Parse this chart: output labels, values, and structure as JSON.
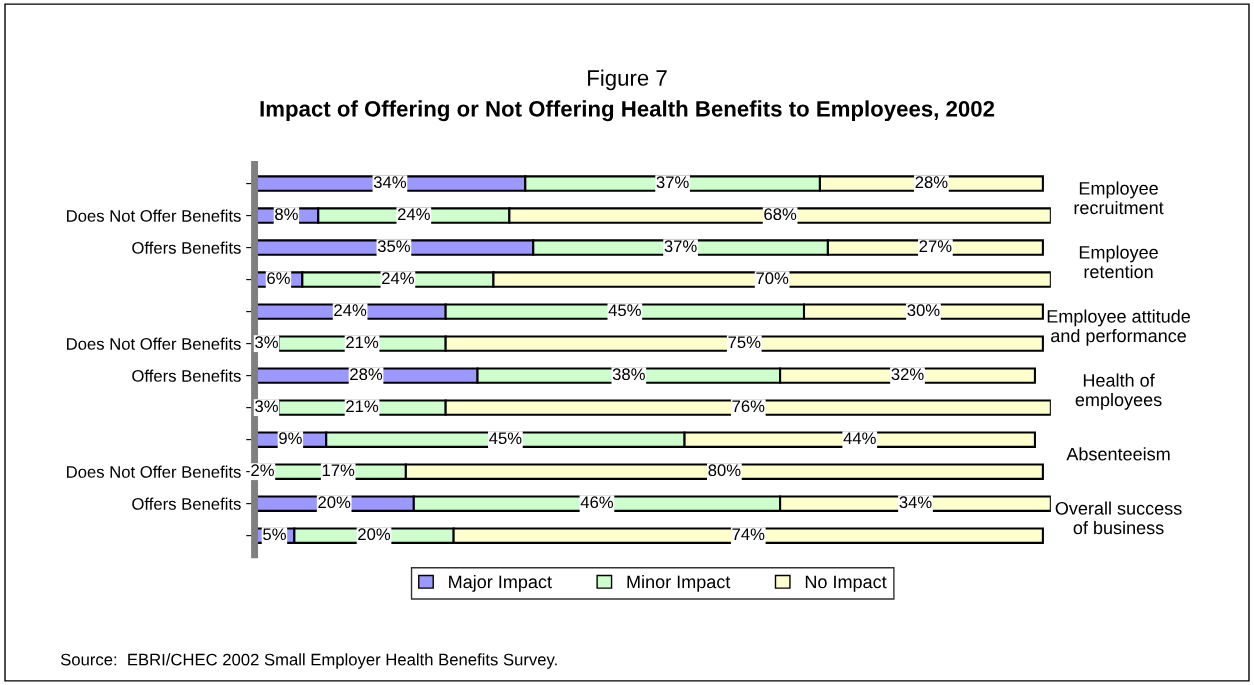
{
  "chart_data": {
    "type": "bar",
    "orientation": "horizontal",
    "stacked": true,
    "title": "Figure 7",
    "subtitle": "Impact of Offering or Not Offering Health Benefits to Employees, 2002",
    "categories": [
      null,
      "Does Not Offer Benefits",
      "Offers Benefits",
      null,
      null,
      "Does Not Offer Benefits",
      "Offers Benefits",
      null,
      null,
      "Does Not Offer Benefits",
      "Offers Benefits",
      null
    ],
    "series": [
      {
        "name": "Major Impact",
        "color": "#9999ff",
        "values": [
          34,
          8,
          35,
          6,
          24,
          3,
          28,
          3,
          9,
          2,
          20,
          5
        ],
        "value_labels": [
          "34%",
          "8%",
          "35%",
          "6%",
          "24%",
          "3%",
          "28%",
          "3%",
          "9%",
          "2%",
          "20%",
          "5%"
        ]
      },
      {
        "name": "Minor Impact",
        "color": "#ccffcc",
        "values": [
          37,
          24,
          37,
          24,
          45,
          21,
          38,
          21,
          45,
          17,
          46,
          20
        ],
        "value_labels": [
          "37%",
          "24%",
          "37%",
          "24%",
          "45%",
          "21%",
          "38%",
          "21%",
          "45%",
          "17%",
          "46%",
          "20%"
        ]
      },
      {
        "name": "No Impact",
        "color": "#ffffcc",
        "values": [
          28,
          68,
          27,
          70,
          30,
          75,
          32,
          76,
          44,
          80,
          34,
          74
        ],
        "value_labels": [
          "28%",
          "68%",
          "27%",
          "70%",
          "30%",
          "75%",
          "32%",
          "76%",
          "44%",
          "80%",
          "34%",
          "74%"
        ]
      }
    ],
    "annotations": [
      "Employee\nrecruitment",
      "Employee\nretention",
      "Employee attitude\nand performance",
      "Health of\nemployees",
      "Absenteeism",
      "Overall success\nof business",
      "Source:  EBRI/CHEC 2002 Small Employer Health Benefits Survey."
    ],
    "legend": "bottom",
    "grid": false
  }
}
